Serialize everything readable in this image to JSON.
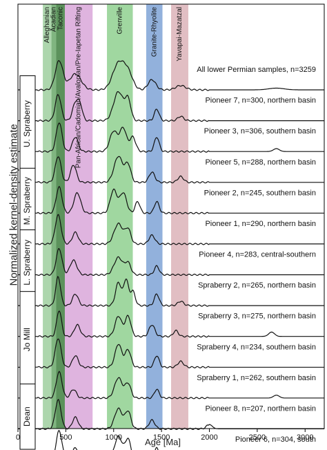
{
  "chart_data": {
    "type": "line",
    "title": "",
    "ylabel": "Normalized kernel-density estimate",
    "xlabel": "Age [Ma]",
    "xlim": [
      0,
      3200
    ],
    "xticks": [
      0,
      500,
      1000,
      1500,
      2000,
      2500,
      3000
    ],
    "bands": [
      {
        "label": "Alleghanian",
        "range": [
          260,
          350
        ],
        "color": "#9fcf9f"
      },
      {
        "label": "Acadian",
        "range": [
          350,
          400
        ],
        "color": "#6aa86a"
      },
      {
        "label": "Taconic",
        "range": [
          400,
          490
        ],
        "color": "#3f7f3f"
      },
      {
        "label": "Pan-African/Cadomian/Avalonian/Pre-Iapetan Rifting",
        "range": [
          490,
          780
        ],
        "color": "#d9a7d9"
      },
      {
        "label": "Grenville",
        "range": [
          930,
          1200
        ],
        "color": "#8fd08f"
      },
      {
        "label": "Granite-Rhyolite",
        "range": [
          1340,
          1510
        ],
        "color": "#7fa3d6"
      },
      {
        "label": "Yavapai-Mazatzal",
        "range": [
          1600,
          1780
        ],
        "color": "#dcb3b8"
      }
    ],
    "series": [
      {
        "name": "All lower Permian samples, n=3259",
        "peaks": [
          [
            430,
            1.0,
            40
          ],
          [
            600,
            0.55,
            60
          ],
          [
            1050,
            0.9,
            60
          ],
          [
            1150,
            0.55,
            50
          ],
          [
            1400,
            0.35,
            40
          ],
          [
            1700,
            0.15,
            50
          ],
          [
            2700,
            0.06,
            80
          ]
        ]
      },
      {
        "name": "Pioneer 7, n=300, northern basin",
        "peaks": [
          [
            420,
            0.9,
            30
          ],
          [
            600,
            0.6,
            30
          ],
          [
            650,
            0.5,
            25
          ],
          [
            1050,
            1.0,
            50
          ],
          [
            1150,
            0.7,
            30
          ],
          [
            1450,
            0.4,
            25
          ],
          [
            1700,
            0.15,
            30
          ]
        ]
      },
      {
        "name": "Pioneer 3, n=306, southern basin",
        "peaks": [
          [
            430,
            1.0,
            30
          ],
          [
            600,
            0.5,
            30
          ],
          [
            1000,
            0.7,
            40
          ],
          [
            1100,
            0.8,
            35
          ],
          [
            1200,
            0.5,
            30
          ],
          [
            1450,
            0.5,
            25
          ],
          [
            2700,
            0.1,
            30
          ]
        ]
      },
      {
        "name": "Pioneer 5, n=288, northern basin",
        "peaks": [
          [
            420,
            0.9,
            30
          ],
          [
            580,
            0.6,
            30
          ],
          [
            1050,
            0.9,
            45
          ],
          [
            1150,
            0.6,
            30
          ],
          [
            1400,
            0.35,
            30
          ],
          [
            1700,
            0.2,
            30
          ]
        ]
      },
      {
        "name": "Pioneer 2, n=245, southern basin",
        "peaks": [
          [
            430,
            0.9,
            30
          ],
          [
            620,
            0.7,
            35
          ],
          [
            1000,
            0.8,
            35
          ],
          [
            1100,
            0.7,
            35
          ],
          [
            1250,
            0.4,
            25
          ],
          [
            1450,
            0.4,
            25
          ]
        ]
      },
      {
        "name": "Pioneer 1, n=290, northern basin",
        "peaks": [
          [
            420,
            1.0,
            30
          ],
          [
            600,
            0.4,
            30
          ],
          [
            1050,
            0.7,
            45
          ],
          [
            1150,
            0.5,
            30
          ],
          [
            1400,
            0.3,
            30
          ]
        ]
      },
      {
        "name": "Pioneer 4, n=283, central-southern",
        "peaks": [
          [
            430,
            0.9,
            30
          ],
          [
            580,
            0.5,
            35
          ],
          [
            1050,
            0.6,
            45
          ],
          [
            1150,
            0.4,
            30
          ],
          [
            1450,
            0.3,
            25
          ]
        ]
      },
      {
        "name": "Spraberry 2, n=265, northern basin",
        "peaks": [
          [
            420,
            1.0,
            25
          ],
          [
            600,
            0.4,
            30
          ],
          [
            1050,
            0.8,
            30
          ],
          [
            1130,
            0.9,
            25
          ],
          [
            1200,
            0.5,
            25
          ],
          [
            1450,
            0.4,
            25
          ],
          [
            1700,
            0.15,
            30
          ]
        ]
      },
      {
        "name": "Spraberry 3, n=275, northern basin",
        "peaks": [
          [
            430,
            0.9,
            25
          ],
          [
            620,
            0.4,
            30
          ],
          [
            1050,
            0.7,
            35
          ],
          [
            1150,
            0.7,
            30
          ],
          [
            1400,
            0.4,
            30
          ],
          [
            1650,
            0.2,
            25
          ],
          [
            2650,
            0.15,
            30
          ]
        ]
      },
      {
        "name": "Spraberry 4, n=234, southern basin",
        "peaks": [
          [
            420,
            1.0,
            30
          ],
          [
            600,
            0.4,
            30
          ],
          [
            1050,
            0.8,
            35
          ],
          [
            1150,
            0.6,
            30
          ],
          [
            1450,
            0.4,
            25
          ],
          [
            1700,
            0.2,
            30
          ]
        ]
      },
      {
        "name": "Spraberry 1, n=262, southern basin",
        "peaks": [
          [
            430,
            0.9,
            30
          ],
          [
            580,
            0.3,
            30
          ],
          [
            1050,
            0.7,
            40
          ],
          [
            1150,
            0.5,
            30
          ],
          [
            1450,
            0.3,
            25
          ],
          [
            2700,
            0.1,
            30
          ]
        ]
      },
      {
        "name": "Pioneer 8, n=207, northern basin",
        "peaks": [
          [
            420,
            1.0,
            30
          ],
          [
            600,
            0.4,
            30
          ],
          [
            1050,
            0.7,
            40
          ],
          [
            1150,
            0.6,
            30
          ],
          [
            1400,
            0.3,
            30
          ],
          [
            2000,
            0.15,
            30
          ]
        ]
      },
      {
        "name": "Pioneer 6, n=304, south",
        "peaks": [
          [
            430,
            1.0,
            30
          ],
          [
            600,
            0.4,
            35
          ],
          [
            1050,
            0.8,
            40
          ],
          [
            1150,
            0.7,
            30
          ],
          [
            1450,
            0.4,
            25
          ],
          [
            1700,
            0.2,
            30
          ]
        ]
      }
    ],
    "groups": [
      {
        "label": "U. Spraberry",
        "rows": [
          1,
          3
        ]
      },
      {
        "label": "M. Spraberry",
        "rows": [
          4,
          5
        ]
      },
      {
        "label": "L. Spraberry",
        "rows": [
          6,
          7
        ]
      },
      {
        "label": "Jo Mill",
        "rows": [
          8,
          10
        ]
      },
      {
        "label": "Dean",
        "rows": [
          11,
          12
        ]
      }
    ]
  }
}
